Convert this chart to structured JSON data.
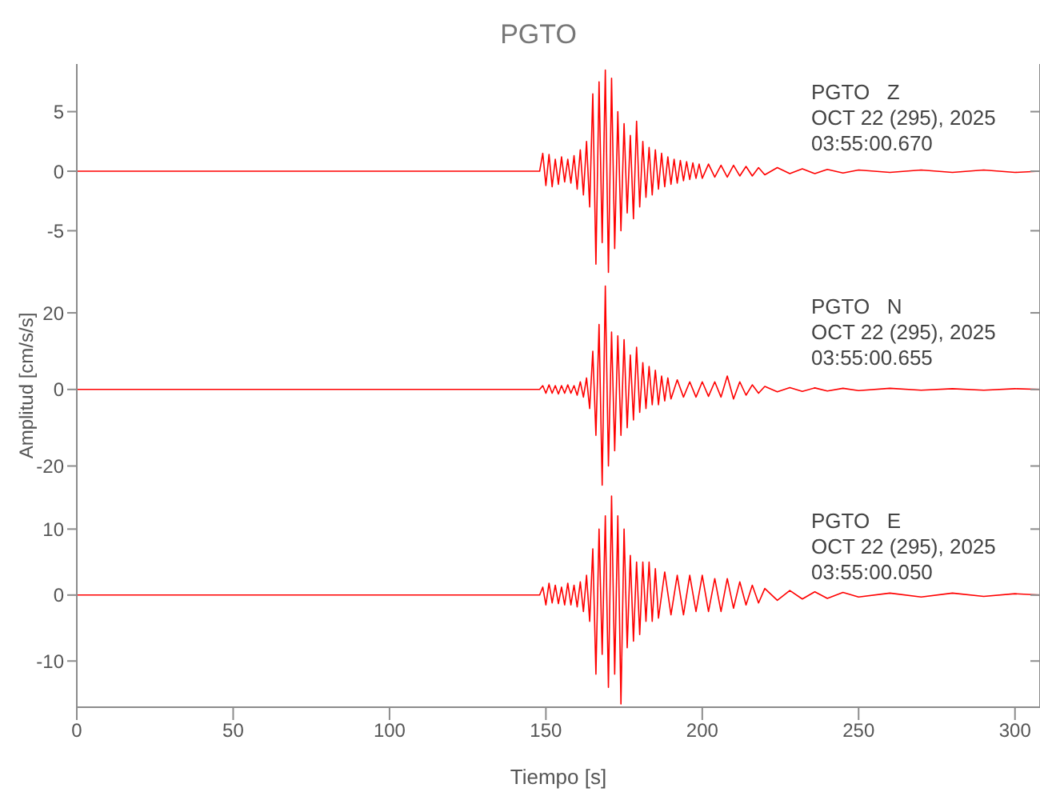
{
  "chart_data": [
    {
      "type": "line",
      "title": "PGTO",
      "annotations": [
        "PGTO   Z",
        "OCT 22 (295), 2025",
        "03:55:00.670"
      ],
      "xlim": [
        0,
        308
      ],
      "xticks": [
        0,
        50,
        100,
        150,
        200,
        250,
        300
      ],
      "ylim": [
        -9,
        9
      ],
      "yticks": [
        -5,
        0,
        5
      ],
      "tick_labels": "y",
      "x": [
        0,
        148,
        149,
        150,
        151,
        152,
        153,
        154,
        155,
        156,
        157,
        158,
        159,
        160,
        161,
        162,
        163,
        164,
        165,
        166,
        167,
        168,
        169,
        170,
        171,
        172,
        173,
        174,
        175,
        176,
        177,
        178,
        179,
        180,
        181,
        182,
        183,
        184,
        185,
        186,
        187,
        188,
        189,
        190,
        191,
        192,
        193,
        194,
        195,
        196,
        197,
        198,
        199,
        200,
        202,
        204,
        206,
        208,
        210,
        212,
        214,
        216,
        218,
        220,
        224,
        228,
        232,
        236,
        240,
        245,
        250,
        260,
        270,
        280,
        290,
        300,
        308
      ],
      "series": [
        {
          "color": "#ff0000",
          "values": [
            0,
            0,
            1.5,
            -1.2,
            1.4,
            -1.3,
            1.0,
            -1.1,
            1.2,
            -0.9,
            1.0,
            -1.0,
            1.3,
            -1.5,
            1.8,
            -2.0,
            2.5,
            -3.0,
            6.5,
            -7.8,
            7.5,
            -6,
            8.5,
            -8.5,
            7.8,
            -6.5,
            5,
            -5,
            4,
            -3.5,
            3,
            -4,
            4.2,
            -3,
            2.5,
            -2.2,
            2,
            -2,
            1.8,
            -1.5,
            1.5,
            -1.3,
            1.2,
            -1.1,
            1.0,
            -1.0,
            0.9,
            -0.8,
            0.8,
            -0.7,
            0.7,
            -0.6,
            0.6,
            -0.6,
            0.6,
            -0.5,
            0.5,
            -0.5,
            0.5,
            -0.4,
            0.4,
            -0.4,
            0.3,
            -0.3,
            0.3,
            -0.2,
            0.2,
            -0.2,
            0.15,
            -0.15,
            0.1,
            -0.1,
            0.1,
            -0.1,
            0.1,
            -0.1,
            0
          ]
        }
      ]
    },
    {
      "type": "line",
      "ylabel": "Amplitud [cm/s/s]",
      "annotations": [
        "PGTO   N",
        "OCT 22 (295), 2025",
        "03:55:00.655"
      ],
      "xlim": [
        0,
        308
      ],
      "xticks": [
        0,
        50,
        100,
        150,
        200,
        250,
        300
      ],
      "ylim": [
        -27,
        29
      ],
      "yticks": [
        -20,
        0,
        20
      ],
      "tick_labels": "y",
      "x": [
        0,
        148,
        149,
        150,
        151,
        152,
        153,
        154,
        155,
        156,
        157,
        158,
        159,
        160,
        161,
        162,
        163,
        164,
        165,
        166,
        167,
        168,
        169,
        170,
        171,
        172,
        173,
        174,
        175,
        176,
        177,
        178,
        179,
        180,
        181,
        182,
        183,
        184,
        185,
        186,
        187,
        188,
        189,
        190,
        192,
        194,
        196,
        198,
        200,
        202,
        204,
        206,
        208,
        210,
        212,
        214,
        216,
        218,
        220,
        224,
        228,
        232,
        236,
        240,
        245,
        250,
        260,
        270,
        280,
        290,
        300,
        308
      ],
      "series": [
        {
          "color": "#ff0000",
          "values": [
            0,
            0,
            1,
            -1,
            1.2,
            -1,
            1,
            -1.2,
            1,
            -1,
            1.2,
            -1,
            1,
            -1.5,
            2,
            -2,
            3,
            -5,
            10,
            -12,
            17,
            -25,
            27,
            -20,
            15,
            -16,
            14,
            -12,
            13,
            -10,
            9,
            -8,
            11,
            -6,
            7,
            -5,
            6,
            -4,
            5,
            -4,
            3.5,
            -3,
            3,
            -2.5,
            2.5,
            -2,
            2,
            -2,
            2,
            -1.8,
            2,
            -2,
            3.5,
            -2.5,
            2,
            -1.5,
            1.2,
            -1,
            0.8,
            -0.6,
            0.5,
            -0.5,
            0.4,
            -0.4,
            0.3,
            -0.3,
            0.3,
            -0.2,
            0.2,
            -0.2,
            0.2,
            0
          ]
        }
      ]
    },
    {
      "type": "line",
      "xlabel": "Tiempo [s]",
      "annotations": [
        "PGTO   E",
        "OCT 22 (295), 2025",
        "03:55:00.050"
      ],
      "xlim": [
        0,
        308
      ],
      "xticks": [
        0,
        50,
        100,
        150,
        200,
        250,
        300
      ],
      "ylim": [
        -17,
        15.5
      ],
      "yticks": [
        -10,
        0,
        10
      ],
      "x": [
        0,
        148,
        149,
        150,
        151,
        152,
        153,
        154,
        155,
        156,
        157,
        158,
        159,
        160,
        161,
        162,
        163,
        164,
        165,
        166,
        167,
        168,
        169,
        170,
        171,
        172,
        173,
        174,
        175,
        176,
        177,
        178,
        179,
        180,
        181,
        182,
        183,
        184,
        185,
        186,
        188,
        190,
        192,
        194,
        196,
        198,
        200,
        202,
        204,
        206,
        208,
        210,
        212,
        214,
        216,
        218,
        220,
        224,
        228,
        232,
        236,
        240,
        245,
        250,
        260,
        270,
        280,
        290,
        300,
        308
      ],
      "series": [
        {
          "color": "#ff0000",
          "values": [
            0,
            0,
            1.2,
            -1.5,
            1.8,
            -1.2,
            1.5,
            -1.3,
            1.2,
            -1.5,
            1.8,
            -1.5,
            1.5,
            -1.8,
            2,
            -2.5,
            3,
            -4,
            7,
            -12,
            10,
            -9,
            12,
            -14,
            15,
            -12,
            12,
            -16.5,
            10,
            -8,
            6,
            -7,
            5,
            -6,
            5,
            -4,
            5,
            -4,
            4,
            -3.5,
            3.5,
            -3,
            3,
            -3,
            3,
            -2.5,
            3,
            -2.5,
            2.5,
            -2.5,
            2.5,
            -2,
            2,
            -1.5,
            1.5,
            -1.2,
            1,
            -0.8,
            0.7,
            -0.6,
            0.5,
            -0.5,
            0.4,
            -0.3,
            0.3,
            -0.3,
            0.3,
            -0.2,
            0.2,
            0
          ]
        }
      ]
    }
  ]
}
